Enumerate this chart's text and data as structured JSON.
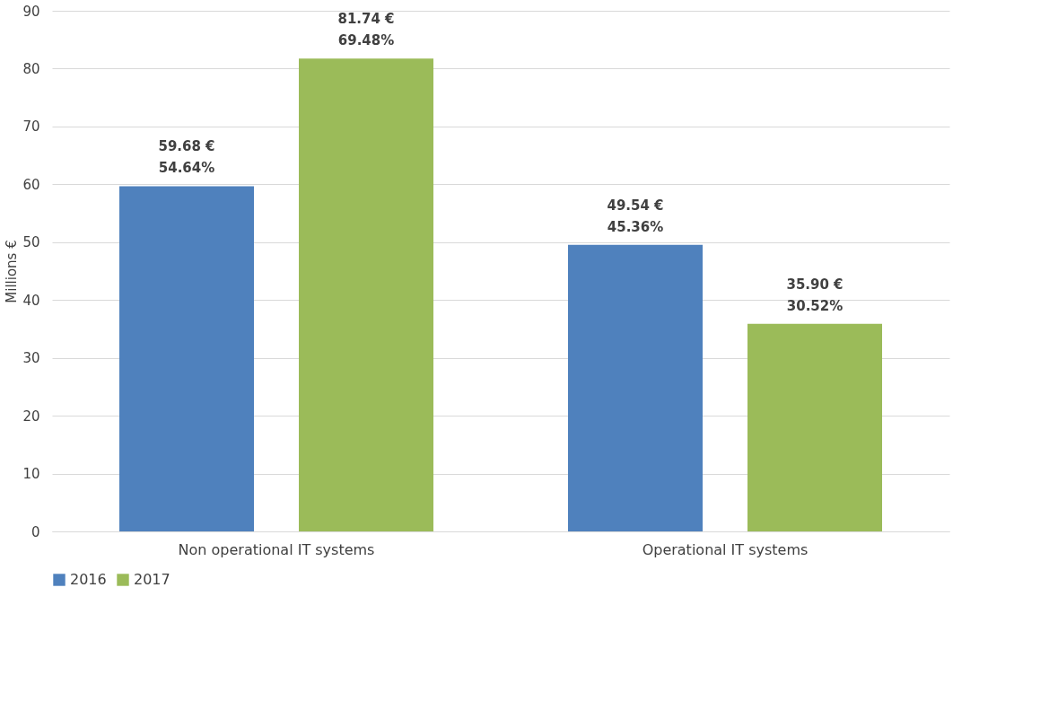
{
  "chart_data": {
    "type": "bar",
    "ylabel": "Millions €",
    "categories": [
      "Non operational IT systems",
      "Operational IT systems"
    ],
    "series": [
      {
        "name": "2016",
        "color": "#4f81bd",
        "values": [
          59.68,
          49.54
        ],
        "value_labels": [
          "59.68 €\n54.64%",
          "49.54 €\n45.36%"
        ]
      },
      {
        "name": "2017",
        "color": "#9bbb59",
        "values": [
          81.74,
          35.9
        ],
        "value_labels": [
          "81.74 €\n69.48%",
          "35.90 €\n30.52%"
        ]
      }
    ],
    "ylim": [
      0,
      90
    ],
    "yticks": [
      0,
      10,
      20,
      30,
      40,
      50,
      60,
      70,
      80,
      90
    ],
    "grid": "y",
    "legend": "bottom"
  }
}
